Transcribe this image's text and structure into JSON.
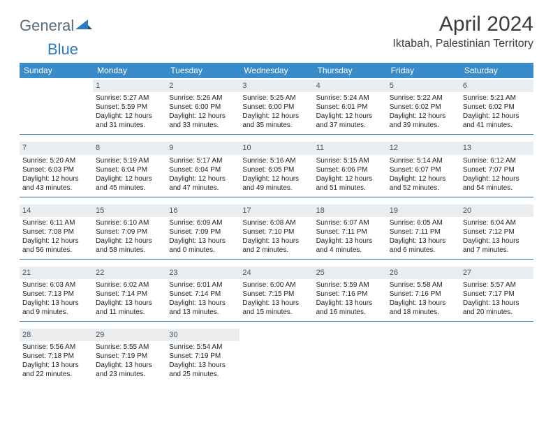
{
  "brand": {
    "word1": "General",
    "word2": "Blue"
  },
  "title": "April 2024",
  "location": "Iktabah, Palestinian Territory",
  "colors": {
    "header_bg": "#3a8bc9",
    "header_text": "#ffffff",
    "daynum_bg": "#e9edf0",
    "daynum_text": "#4a5560",
    "week_border": "#2f6fa8",
    "logo_gray": "#5a6b7a",
    "logo_blue": "#2f7bbf"
  },
  "weekdays": [
    "Sunday",
    "Monday",
    "Tuesday",
    "Wednesday",
    "Thursday",
    "Friday",
    "Saturday"
  ],
  "weeks": [
    [
      null,
      {
        "n": "1",
        "sr": "5:27 AM",
        "ss": "5:59 PM",
        "dl": "12 hours and 31 minutes."
      },
      {
        "n": "2",
        "sr": "5:26 AM",
        "ss": "6:00 PM",
        "dl": "12 hours and 33 minutes."
      },
      {
        "n": "3",
        "sr": "5:25 AM",
        "ss": "6:00 PM",
        "dl": "12 hours and 35 minutes."
      },
      {
        "n": "4",
        "sr": "5:24 AM",
        "ss": "6:01 PM",
        "dl": "12 hours and 37 minutes."
      },
      {
        "n": "5",
        "sr": "5:22 AM",
        "ss": "6:02 PM",
        "dl": "12 hours and 39 minutes."
      },
      {
        "n": "6",
        "sr": "5:21 AM",
        "ss": "6:02 PM",
        "dl": "12 hours and 41 minutes."
      }
    ],
    [
      {
        "n": "7",
        "sr": "5:20 AM",
        "ss": "6:03 PM",
        "dl": "12 hours and 43 minutes."
      },
      {
        "n": "8",
        "sr": "5:19 AM",
        "ss": "6:04 PM",
        "dl": "12 hours and 45 minutes."
      },
      {
        "n": "9",
        "sr": "5:17 AM",
        "ss": "6:04 PM",
        "dl": "12 hours and 47 minutes."
      },
      {
        "n": "10",
        "sr": "5:16 AM",
        "ss": "6:05 PM",
        "dl": "12 hours and 49 minutes."
      },
      {
        "n": "11",
        "sr": "5:15 AM",
        "ss": "6:06 PM",
        "dl": "12 hours and 51 minutes."
      },
      {
        "n": "12",
        "sr": "5:14 AM",
        "ss": "6:07 PM",
        "dl": "12 hours and 52 minutes."
      },
      {
        "n": "13",
        "sr": "6:12 AM",
        "ss": "7:07 PM",
        "dl": "12 hours and 54 minutes."
      }
    ],
    [
      {
        "n": "14",
        "sr": "6:11 AM",
        "ss": "7:08 PM",
        "dl": "12 hours and 56 minutes."
      },
      {
        "n": "15",
        "sr": "6:10 AM",
        "ss": "7:09 PM",
        "dl": "12 hours and 58 minutes."
      },
      {
        "n": "16",
        "sr": "6:09 AM",
        "ss": "7:09 PM",
        "dl": "13 hours and 0 minutes."
      },
      {
        "n": "17",
        "sr": "6:08 AM",
        "ss": "7:10 PM",
        "dl": "13 hours and 2 minutes."
      },
      {
        "n": "18",
        "sr": "6:07 AM",
        "ss": "7:11 PM",
        "dl": "13 hours and 4 minutes."
      },
      {
        "n": "19",
        "sr": "6:05 AM",
        "ss": "7:11 PM",
        "dl": "13 hours and 6 minutes."
      },
      {
        "n": "20",
        "sr": "6:04 AM",
        "ss": "7:12 PM",
        "dl": "13 hours and 7 minutes."
      }
    ],
    [
      {
        "n": "21",
        "sr": "6:03 AM",
        "ss": "7:13 PM",
        "dl": "13 hours and 9 minutes."
      },
      {
        "n": "22",
        "sr": "6:02 AM",
        "ss": "7:14 PM",
        "dl": "13 hours and 11 minutes."
      },
      {
        "n": "23",
        "sr": "6:01 AM",
        "ss": "7:14 PM",
        "dl": "13 hours and 13 minutes."
      },
      {
        "n": "24",
        "sr": "6:00 AM",
        "ss": "7:15 PM",
        "dl": "13 hours and 15 minutes."
      },
      {
        "n": "25",
        "sr": "5:59 AM",
        "ss": "7:16 PM",
        "dl": "13 hours and 16 minutes."
      },
      {
        "n": "26",
        "sr": "5:58 AM",
        "ss": "7:16 PM",
        "dl": "13 hours and 18 minutes."
      },
      {
        "n": "27",
        "sr": "5:57 AM",
        "ss": "7:17 PM",
        "dl": "13 hours and 20 minutes."
      }
    ],
    [
      {
        "n": "28",
        "sr": "5:56 AM",
        "ss": "7:18 PM",
        "dl": "13 hours and 22 minutes."
      },
      {
        "n": "29",
        "sr": "5:55 AM",
        "ss": "7:19 PM",
        "dl": "13 hours and 23 minutes."
      },
      {
        "n": "30",
        "sr": "5:54 AM",
        "ss": "7:19 PM",
        "dl": "13 hours and 25 minutes."
      },
      null,
      null,
      null,
      null
    ]
  ],
  "labels": {
    "sunrise": "Sunrise:",
    "sunset": "Sunset:",
    "daylight": "Daylight:"
  }
}
